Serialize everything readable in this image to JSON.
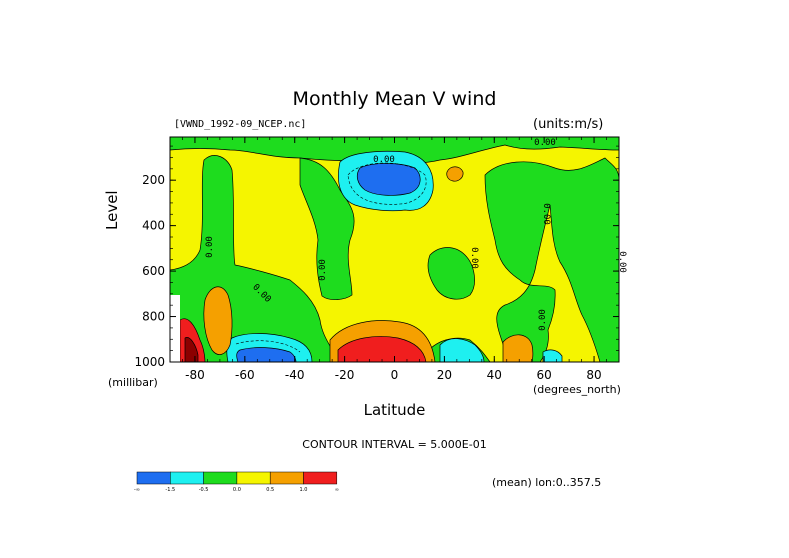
{
  "chart_data": {
    "type": "heatmap",
    "title": "Monthly Mean V wind",
    "dataset_label": "[VWND_1992-09_NCEP.nc]",
    "units_label": "(units:m/s)",
    "xlabel": "Latitude",
    "x_unit_label": "(degrees_north)",
    "ylabel": "Level",
    "y_unit_label": "(millibar)",
    "xlim": [
      -90,
      90
    ],
    "ylim": [
      1000,
      10
    ],
    "x_ticks": [
      -80,
      -60,
      -40,
      -20,
      0,
      20,
      40,
      60,
      80
    ],
    "y_ticks": [
      200,
      400,
      600,
      800,
      1000
    ],
    "contour_interval_text": "CONTOUR INTERVAL = 5.000E-01",
    "mean_label": "(mean) lon:0..357.5",
    "contour_labels": [
      "0.00",
      "0.00",
      "0.00",
      "0.00",
      "0.00",
      "0.00",
      "0.00",
      "0.00",
      "0.00"
    ],
    "legend": {
      "colors": [
        "#1e6ef0",
        "#1ef0f0",
        "#1edc1e",
        "#f5f500",
        "#f5a000",
        "#f01e1e"
      ],
      "labels": [
        "-∞",
        "-1.5",
        "-0.5",
        "0.0",
        "0.5",
        "1.0",
        "∞"
      ]
    },
    "regions": [
      {
        "level": "positive",
        "color": "#f5f500"
      },
      {
        "level": "slightly negative",
        "color": "#1edc1e"
      },
      {
        "level": "negative",
        "color": "#1ef0f0"
      },
      {
        "level": "strongly negative",
        "color": "#1e6ef0"
      },
      {
        "level": "positive strong",
        "color": "#f5a000"
      },
      {
        "level": "strongly positive",
        "color": "#f01e1e"
      }
    ]
  }
}
